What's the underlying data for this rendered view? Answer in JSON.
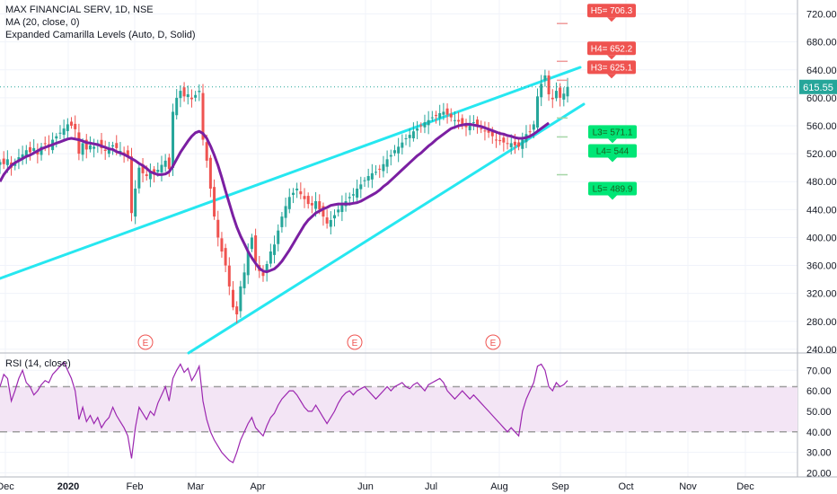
{
  "legend": {
    "symbol": "MAX FINANCIAL SERV, 1D, NSE",
    "ma": "MA (20, close, 0)",
    "camarilla": "Expanded Camarilla Levels (Auto, D, Solid)",
    "rsi": "RSI (14, close)"
  },
  "colors": {
    "up": "#26a69a",
    "down": "#ef5350",
    "ma": "#7b1fa2",
    "trend": "#26e7f0",
    "rsi": "#9c27b0",
    "rsi_band": "#f3e5f5",
    "price_badge": "#26a69a",
    "grid": "#f0f3fa",
    "axis": "#b2b5be",
    "text": "#131722"
  },
  "chart_data": [
    {
      "type": "candlestick",
      "title": "MAX FINANCIAL SERV, 1D, NSE",
      "x_ticks": [
        "Dec",
        "2020",
        "Feb",
        "Mar",
        "Apr",
        "Jun",
        "Jul",
        "Aug",
        "Sep",
        "Oct",
        "Nov",
        "Dec"
      ],
      "y_ticks": [
        240,
        280,
        320,
        360,
        400,
        440,
        480,
        520,
        560,
        600,
        640,
        680,
        720
      ],
      "ylim": [
        236,
        740
      ],
      "last_price": "615.55",
      "closes": [
        508,
        505,
        512,
        500,
        507,
        515,
        519,
        525,
        522,
        528,
        519,
        530,
        534,
        530,
        540,
        545,
        550,
        556,
        562,
        560,
        555,
        520,
        535,
        526,
        532,
        530,
        535,
        528,
        524,
        527,
        532,
        528,
        524,
        520,
        515,
        435,
        470,
        500,
        492,
        488,
        495,
        490,
        497,
        504,
        510,
        498,
        580,
        600,
        610,
        602,
        605,
        598,
        604,
        610,
        540,
        510,
        470,
        430,
        400,
        380,
        360,
        330,
        300,
        290,
        330,
        350,
        380,
        400,
        365,
        352,
        345,
        362,
        380,
        390,
        410,
        430,
        445,
        458,
        464,
        470,
        462,
        455,
        448,
        446,
        452,
        440,
        430,
        420,
        425,
        432,
        440,
        448,
        452,
        458,
        462,
        470,
        476,
        482,
        488,
        492,
        494,
        498,
        505,
        512,
        518,
        525,
        530,
        536,
        542,
        547,
        552,
        556,
        560,
        565,
        568,
        572,
        575,
        578,
        580,
        576,
        572,
        568,
        566,
        562,
        558,
        562,
        565,
        560,
        556,
        552,
        550,
        545,
        540,
        538,
        536,
        534,
        535,
        532,
        530,
        540,
        548,
        552,
        562,
        602,
        620,
        632,
        605,
        598,
        610,
        600,
        606,
        615.55
      ],
      "ma20": [
        480,
        490,
        497,
        503,
        507,
        510,
        513,
        516,
        518,
        521,
        524,
        527,
        529,
        531,
        533,
        535,
        537,
        539,
        541,
        542,
        541,
        540,
        538,
        536,
        535,
        534,
        533,
        531,
        529,
        527,
        526,
        523,
        521,
        519,
        516,
        513,
        510,
        506,
        503,
        499,
        494,
        492,
        490,
        490,
        491,
        494,
        502,
        512,
        522,
        530,
        538,
        545,
        550,
        552,
        549,
        542,
        531,
        518,
        503,
        486,
        467,
        449,
        431,
        415,
        402,
        391,
        380,
        371,
        363,
        356,
        352,
        351,
        353,
        355,
        360,
        366,
        374,
        382,
        391,
        400,
        409,
        418,
        425,
        430,
        435,
        438,
        441,
        443,
        446,
        447,
        448,
        448,
        448,
        448,
        449,
        450,
        452,
        455,
        458,
        461,
        464,
        468,
        473,
        477,
        482,
        487,
        492,
        497,
        502,
        507,
        512,
        517,
        521,
        526,
        531,
        535,
        540,
        544,
        548,
        552,
        556,
        558,
        560,
        561,
        562,
        562,
        561,
        560,
        559,
        557,
        555,
        553,
        551,
        549,
        548,
        546,
        545,
        543,
        542,
        542,
        543,
        545,
        548,
        552,
        556,
        560,
        564
      ],
      "camarilla": [
        {
          "label": "H5= 706.3",
          "value": 706.3
        },
        {
          "label": "H4= 652.2",
          "value": 652.2
        },
        {
          "label": "H3= 625.1",
          "value": 625.1
        },
        {
          "label": "L3= 571.1",
          "value": 571.1
        },
        {
          "label": "L4= 544",
          "value": 544
        },
        {
          "label": "L5= 489.9",
          "value": 489.9
        }
      ],
      "events": [
        "E",
        "E",
        "E"
      ]
    },
    {
      "type": "line",
      "title": "RSI (14, close)",
      "y_ticks": [
        20,
        30,
        40,
        50,
        60,
        70
      ],
      "ylim": [
        18,
        78
      ],
      "band": [
        40,
        62
      ],
      "values": [
        62,
        68,
        66,
        55,
        60,
        66,
        70,
        64,
        62,
        58,
        60,
        63,
        65,
        64,
        68,
        70,
        72,
        74,
        70,
        66,
        60,
        46,
        52,
        45,
        48,
        44,
        47,
        42,
        45,
        47,
        52,
        48,
        45,
        42,
        38,
        27,
        42,
        52,
        49,
        46,
        50,
        48,
        54,
        58,
        62,
        55,
        66,
        70,
        73,
        69,
        71,
        65,
        68,
        72,
        55,
        46,
        40,
        36,
        33,
        30,
        28,
        26,
        25,
        30,
        36,
        40,
        44,
        47,
        42,
        40,
        38,
        43,
        47,
        49,
        53,
        56,
        58,
        60,
        60,
        58,
        55,
        52,
        50,
        50,
        53,
        50,
        47,
        44,
        47,
        50,
        54,
        57,
        59,
        60,
        58,
        60,
        61,
        62,
        60,
        58,
        56,
        58,
        60,
        62,
        60,
        62,
        63,
        64,
        62,
        61,
        63,
        64,
        62,
        60,
        63,
        64,
        65,
        66,
        64,
        60,
        58,
        56,
        58,
        60,
        58,
        56,
        58,
        56,
        54,
        52,
        50,
        48,
        46,
        44,
        42,
        40,
        42,
        40,
        38,
        50,
        56,
        60,
        64,
        72,
        73,
        70,
        62,
        60,
        64,
        62,
        63,
        65
      ]
    }
  ]
}
